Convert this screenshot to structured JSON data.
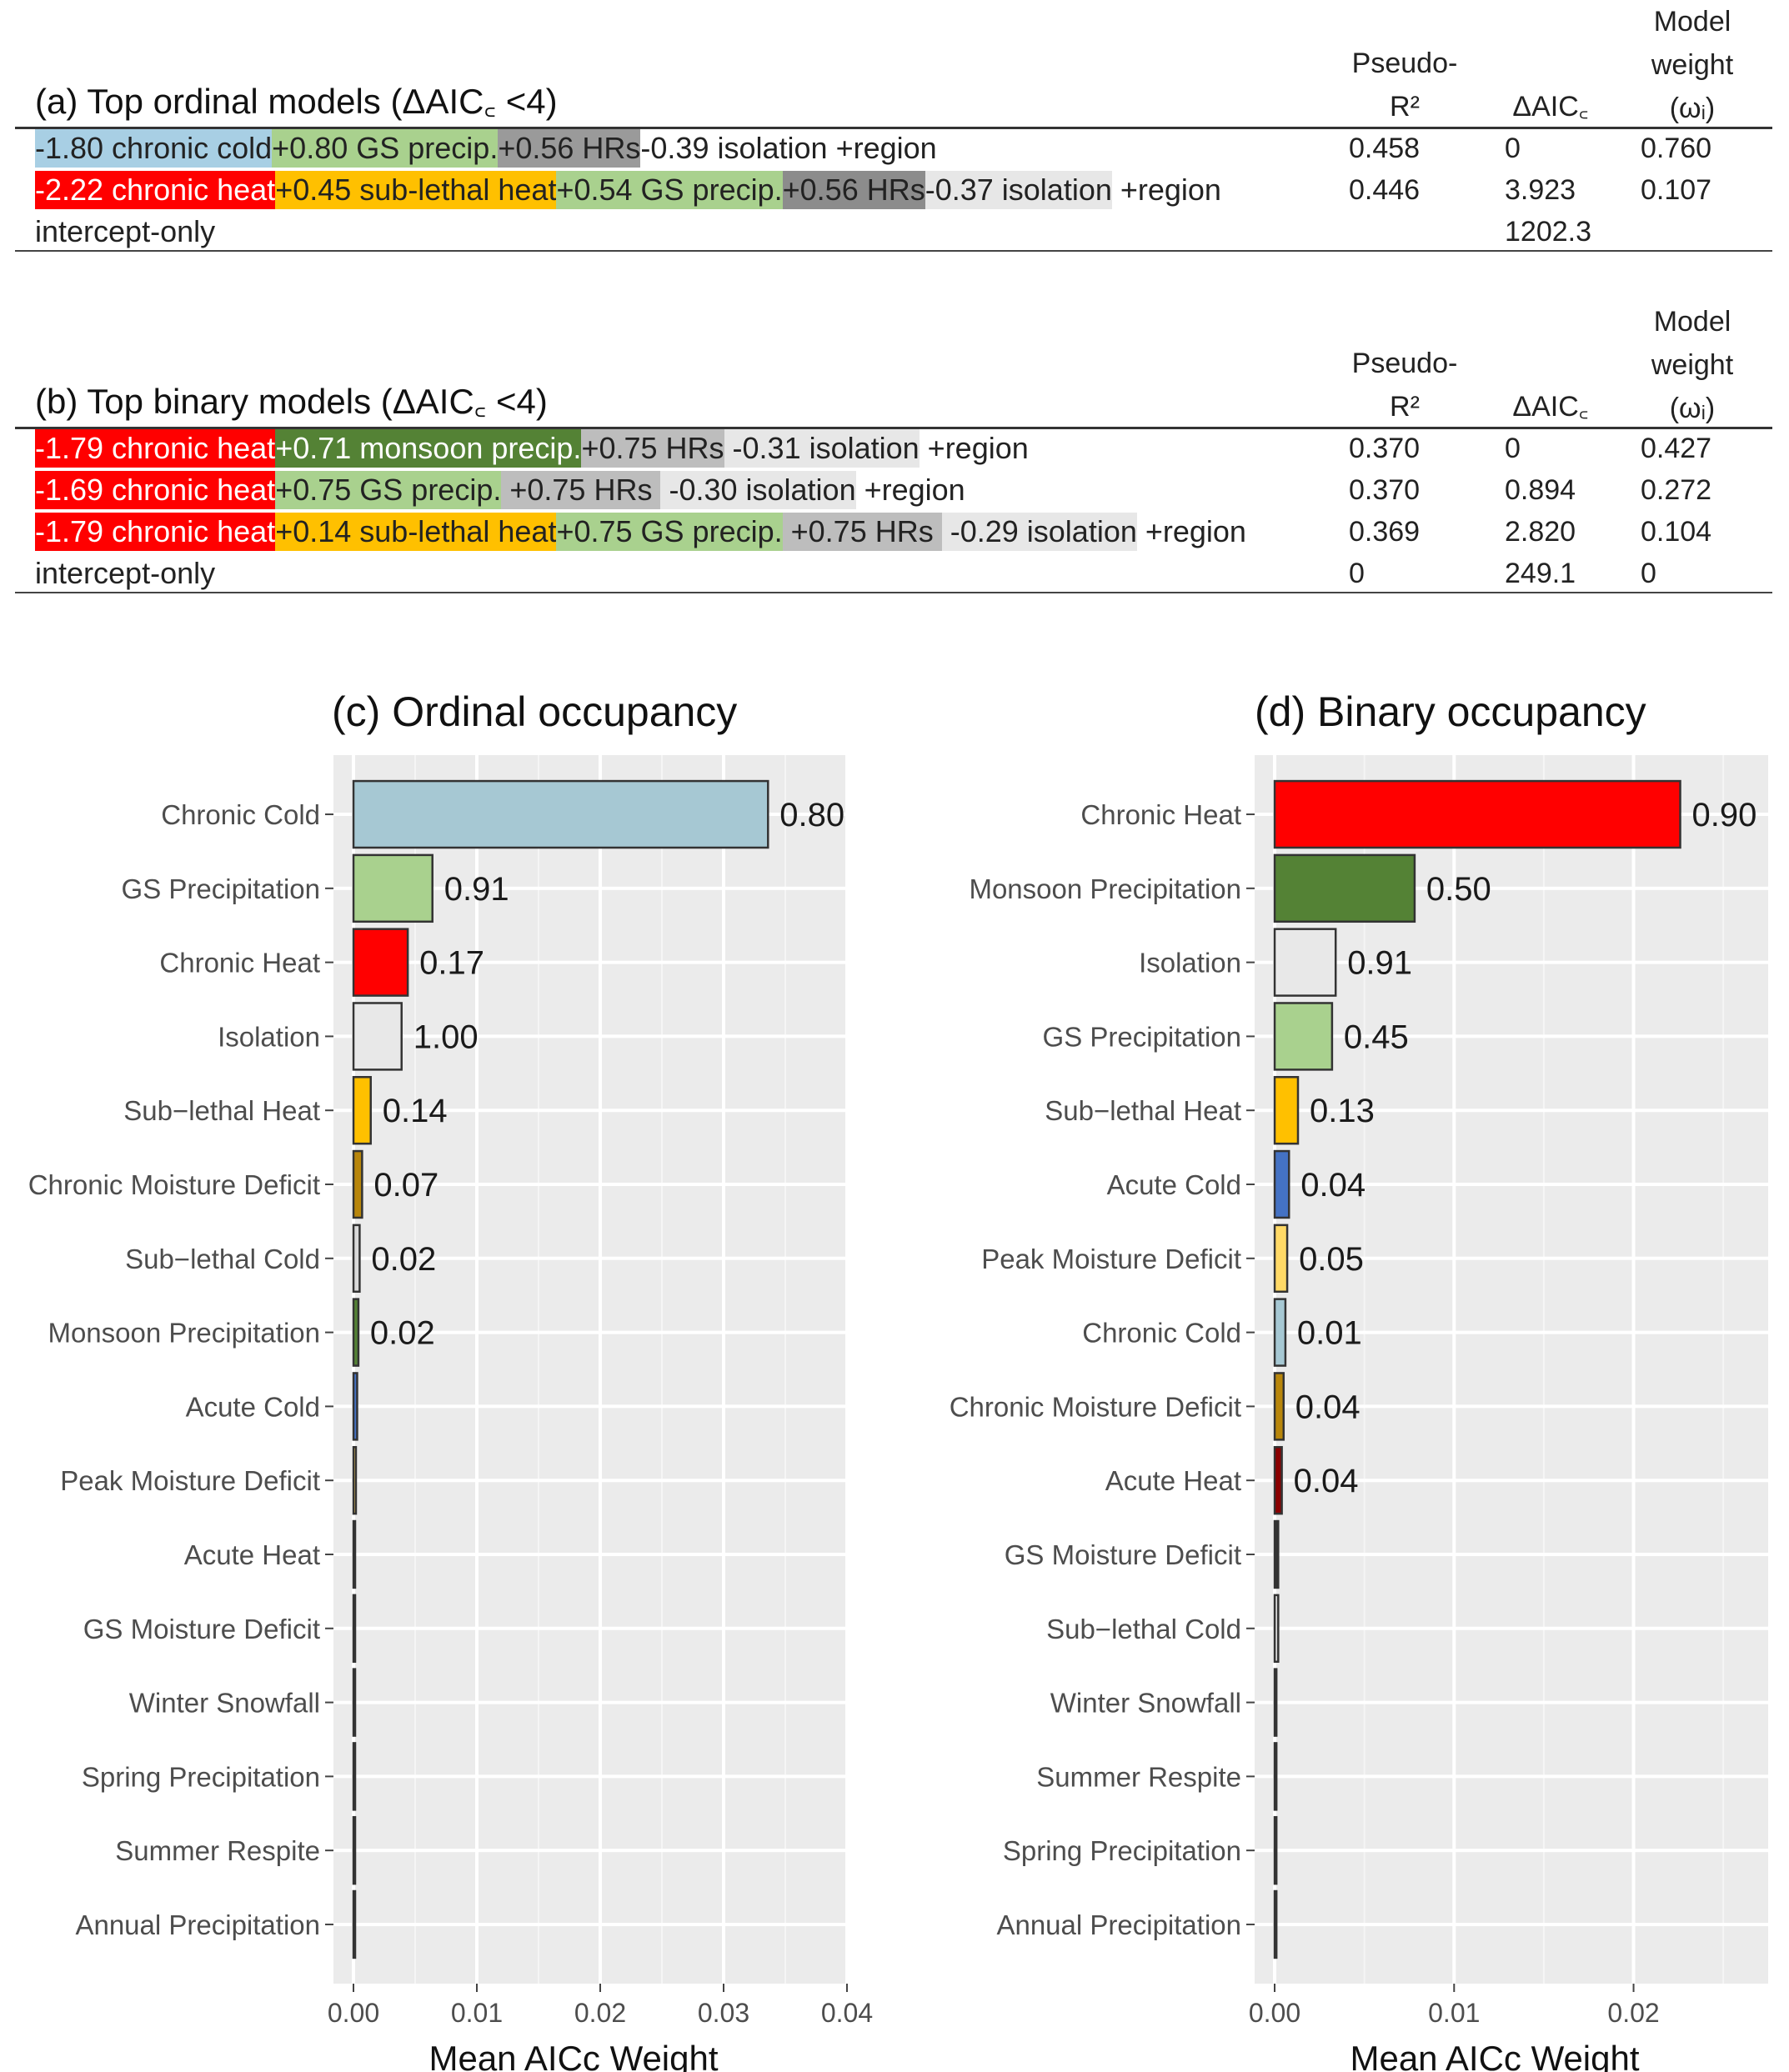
{
  "tables": [
    {
      "title": "(a) Top ordinal models (ΔAIC꜀ <4)",
      "col_headers": {
        "pseudo_r2": "Pseudo-\nR²",
        "delta_aic": "ΔAIC꜀",
        "weight": "Model\nweight\n(ωᵢ)"
      },
      "rows": [
        {
          "segments": [
            {
              "text": "-1.80 chronic cold",
              "bg": "#a8cfe4",
              "fg": "#222222"
            },
            {
              "text": "+0.80 GS precip.",
              "bg": "#a9d18e",
              "fg": "#222222"
            },
            {
              "text": "+0.56 HRs",
              "bg": "#9a9a9a",
              "fg": "#222222"
            },
            {
              "text": "-0.39 isolation",
              "bg": "#ffffff",
              "fg": "#222222"
            },
            {
              "text": " +region",
              "bg": "#ffffff",
              "fg": "#222222"
            }
          ],
          "pseudo_r2": "0.458",
          "delta_aic": "0",
          "weight": "0.760"
        },
        {
          "segments": [
            {
              "text": "-2.22 chronic heat",
              "bg": "#ff0000",
              "fg": "#ffffff"
            },
            {
              "text": "+0.45 sub-lethal heat",
              "bg": "#ffc000",
              "fg": "#222222"
            },
            {
              "text": "+0.54 GS precip.",
              "bg": "#a9d18e",
              "fg": "#222222"
            },
            {
              "text": "+0.56 HRs",
              "bg": "#8c8c8c",
              "fg": "#222222"
            },
            {
              "text": "-0.37 isolation",
              "bg": "#e7e7e7",
              "fg": "#222222"
            },
            {
              "text": " +region",
              "bg": "#ffffff",
              "fg": "#222222"
            }
          ],
          "pseudo_r2": "0.446",
          "delta_aic": "3.923",
          "weight": "0.107"
        },
        {
          "segments": [
            {
              "text": "intercept-only",
              "bg": "#ffffff",
              "fg": "#222222"
            }
          ],
          "pseudo_r2": "",
          "delta_aic": "1202.3",
          "weight": ""
        }
      ]
    },
    {
      "title": "(b) Top binary models (ΔAIC꜀ <4)",
      "col_headers": {
        "pseudo_r2": "Pseudo-\nR²",
        "delta_aic": "ΔAIC꜀",
        "weight": "Model\nweight\n(ωᵢ)"
      },
      "rows": [
        {
          "segments": [
            {
              "text": "-1.79 chronic heat",
              "bg": "#ff0000",
              "fg": "#ffffff"
            },
            {
              "text": "+0.71 monsoon precip.",
              "bg": "#548235",
              "fg": "#ffffff"
            },
            {
              "text": "+0.75 HRs",
              "bg": "#bdbdbd",
              "fg": "#222222"
            },
            {
              "text": " -0.31 isolation",
              "bg": "#e7e7e7",
              "fg": "#222222"
            },
            {
              "text": " +region",
              "bg": "#ffffff",
              "fg": "#222222"
            }
          ],
          "pseudo_r2": "0.370",
          "delta_aic": "0",
          "weight": "0.427"
        },
        {
          "segments": [
            {
              "text": "-1.69 chronic heat",
              "bg": "#ff0000",
              "fg": "#ffffff"
            },
            {
              "text": "+0.75 GS precip.",
              "bg": "#a9d18e",
              "fg": "#222222"
            },
            {
              "text": " +0.75 HRs ",
              "bg": "#bdbdbd",
              "fg": "#222222"
            },
            {
              "text": " -0.30 isolation",
              "bg": "#e7e7e7",
              "fg": "#222222"
            },
            {
              "text": " +region",
              "bg": "#ffffff",
              "fg": "#222222"
            }
          ],
          "pseudo_r2": "0.370",
          "delta_aic": "0.894",
          "weight": "0.272"
        },
        {
          "segments": [
            {
              "text": "-1.79 chronic heat",
              "bg": "#ff0000",
              "fg": "#ffffff"
            },
            {
              "text": "+0.14 sub-lethal heat",
              "bg": "#ffc000",
              "fg": "#222222"
            },
            {
              "text": "+0.75 GS precip.",
              "bg": "#a9d18e",
              "fg": "#222222"
            },
            {
              "text": " +0.75 HRs ",
              "bg": "#bdbdbd",
              "fg": "#222222"
            },
            {
              "text": " -0.29 isolation",
              "bg": "#e7e7e7",
              "fg": "#222222"
            },
            {
              "text": " +region",
              "bg": "#ffffff",
              "fg": "#222222"
            }
          ],
          "pseudo_r2": "0.369",
          "delta_aic": "2.820",
          "weight": "0.104"
        },
        {
          "segments": [
            {
              "text": "intercept-only",
              "bg": "#ffffff",
              "fg": "#222222"
            }
          ],
          "pseudo_r2": "0",
          "delta_aic": "249.1",
          "weight": "0"
        }
      ]
    }
  ],
  "chart_data": [
    {
      "type": "bar",
      "orientation": "horizontal",
      "title": "(c) Ordinal occupancy",
      "xlabel": "Mean AICc Weight",
      "ylabel": "",
      "xlim": [
        0,
        0.04
      ],
      "xticks": [
        "0.00",
        "0.01",
        "0.02",
        "0.03",
        "0.04"
      ],
      "grid": true,
      "categories": [
        "Chronic Cold",
        "GS Precipitation",
        "Chronic Heat",
        "Isolation",
        "Sub−lethal Heat",
        "Chronic Moisture Deficit",
        "Sub−lethal Cold",
        "Monsoon Precipitation",
        "Acute Cold",
        "Peak Moisture Deficit",
        "Acute Heat",
        "GS Moisture Deficit",
        "Winter Snowfall",
        "Spring Precipitation",
        "Summer Respite",
        "Annual Precipitation"
      ],
      "values": [
        0.0336,
        0.0064,
        0.0044,
        0.0039,
        0.0014,
        0.0007,
        0.0005,
        0.0004,
        0.0003,
        0.0002,
        0.0001,
        0.0001,
        0.0001,
        0.0001,
        0.0001,
        0.0001
      ],
      "bar_labels": [
        "0.80",
        "0.91",
        "0.17",
        "1.00",
        "0.14",
        "0.07",
        "0.02",
        "0.02",
        "",
        "",
        "",
        "",
        "",
        "",
        "",
        ""
      ],
      "colors": [
        "#a6c8d3",
        "#a9d18e",
        "#ff0000",
        "#e8e8e8",
        "#ffc000",
        "#b8860b",
        "#d9d9d9",
        "#548235",
        "#4472c4",
        "#ffd966",
        "#8b0000",
        "#333333",
        "#ffffff",
        "#ffffff",
        "#ffffff",
        "#ffffff"
      ]
    },
    {
      "type": "bar",
      "orientation": "horizontal",
      "title": "(d) Binary occupancy",
      "xlabel": "Mean AICc Weight",
      "ylabel": "",
      "xlim": [
        0,
        0.0275
      ],
      "xticks": [
        "0.00",
        "0.01",
        "0.02"
      ],
      "grid": true,
      "categories": [
        "Chronic Heat",
        "Monsoon Precipitation",
        "Isolation",
        "GS Precipitation",
        "Sub−lethal Heat",
        "Acute Cold",
        "Peak Moisture Deficit",
        "Chronic Cold",
        "Chronic Moisture Deficit",
        "Acute Heat",
        "GS Moisture Deficit",
        "Sub−lethal Cold",
        "Winter Snowfall",
        "Summer Respite",
        "Spring Precipitation",
        "Annual Precipitation"
      ],
      "values": [
        0.0226,
        0.0078,
        0.0034,
        0.0032,
        0.0013,
        0.0008,
        0.0007,
        0.0006,
        0.0005,
        0.0004,
        0.0002,
        0.0002,
        0.0001,
        0.0001,
        0.0001,
        0.0001
      ],
      "bar_labels": [
        "0.90",
        "0.50",
        "0.91",
        "0.45",
        "0.13",
        "0.04",
        "0.05",
        "0.01",
        "0.04",
        "0.04",
        "",
        "",
        "",
        "",
        "",
        ""
      ],
      "colors": [
        "#ff0000",
        "#548235",
        "#e8e8e8",
        "#a9d18e",
        "#ffc000",
        "#4472c4",
        "#ffd966",
        "#a6c8d3",
        "#b8860b",
        "#8b0000",
        "#333333",
        "#d9d9d9",
        "#ffffff",
        "#ffffff",
        "#ffffff",
        "#ffffff"
      ]
    }
  ]
}
